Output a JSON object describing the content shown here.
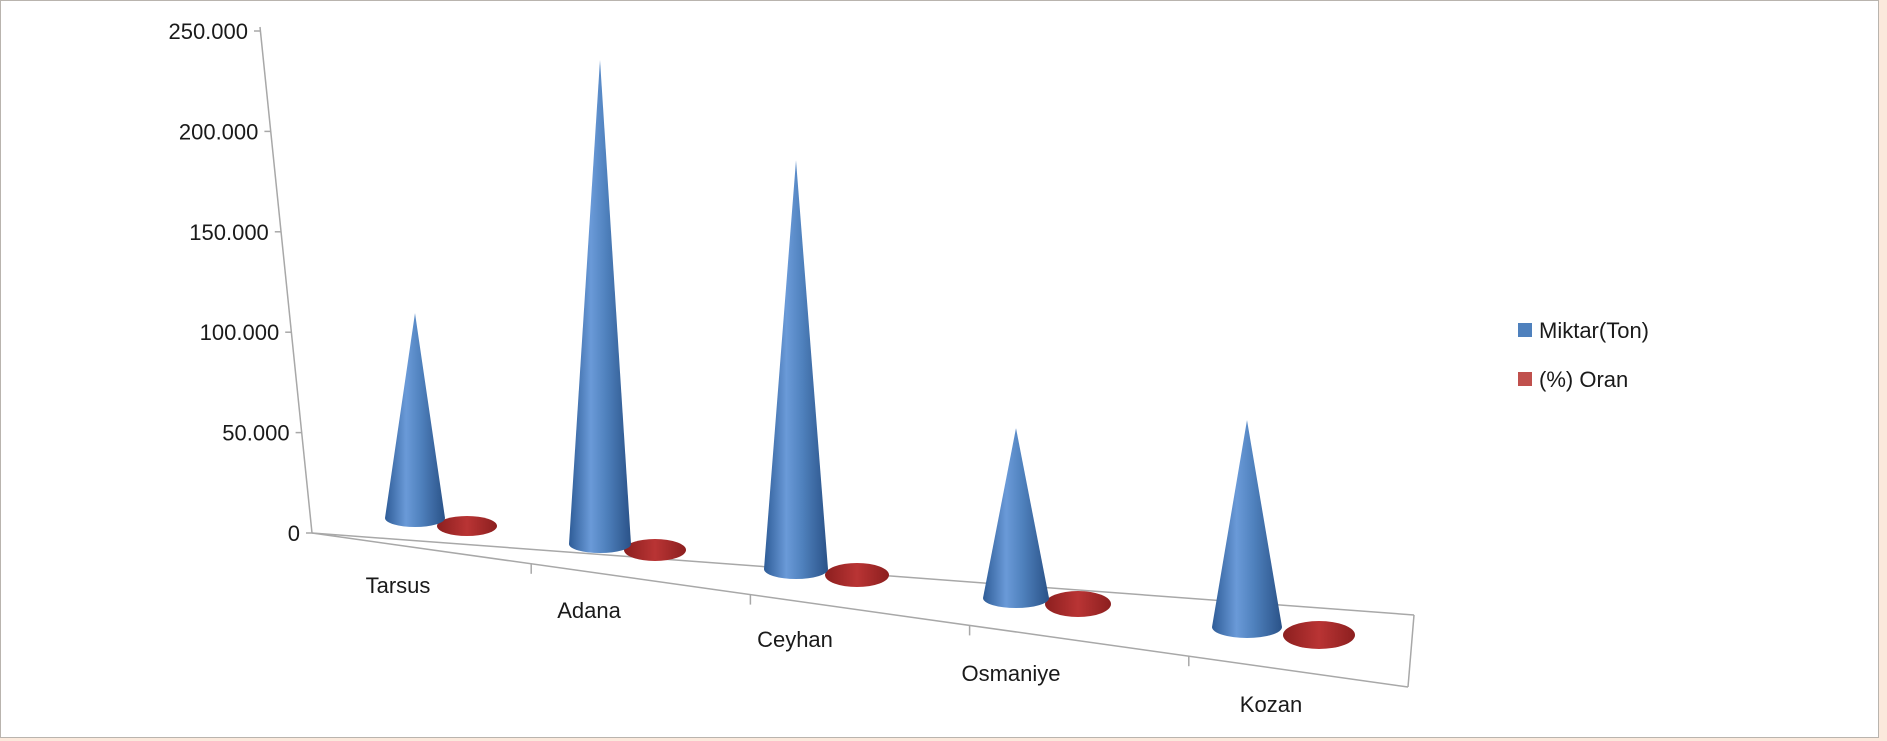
{
  "chart_data": {
    "type": "bar",
    "subtype": "3d-cone",
    "title": "",
    "xlabel": "",
    "ylabel": "",
    "categories": [
      "Tarsus",
      "Adana",
      "Ceyhan",
      "Osmaniye",
      "Kozan"
    ],
    "series": [
      {
        "name": "Miktar(Ton)",
        "color": "#4f81bd",
        "values": [
          102000,
          246000,
          212000,
          90000,
          112000
        ]
      },
      {
        "name": "(%) Oran",
        "color": "#c0504d",
        "values": [
          15,
          28,
          24,
          10,
          13
        ]
      }
    ],
    "ylim": [
      0,
      250000
    ],
    "yticks": [
      "0",
      "50.000",
      "100.000",
      "150.000",
      "200.000",
      "250.000"
    ],
    "legend_position": "right",
    "grid": false
  }
}
